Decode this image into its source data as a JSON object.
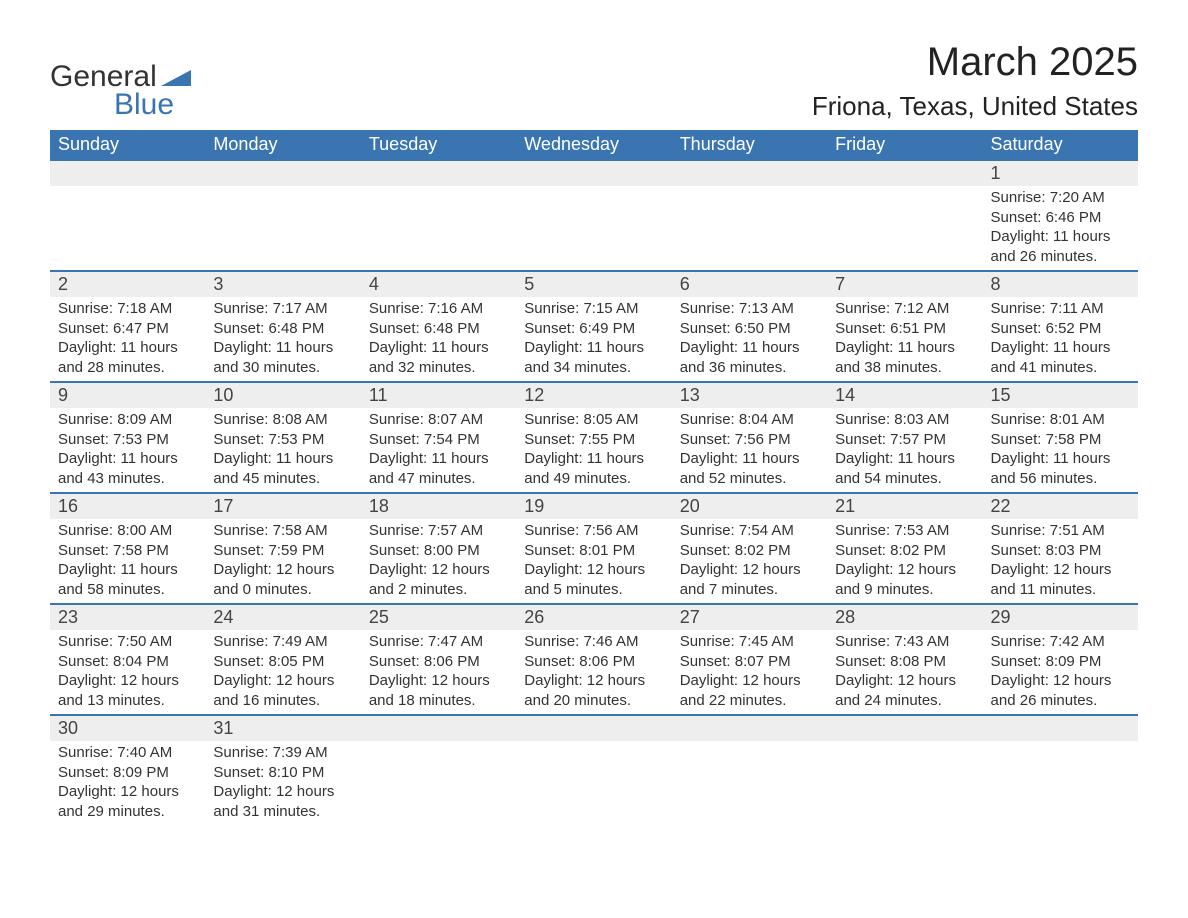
{
  "logo": {
    "text1": "General",
    "text2": "Blue",
    "accent_color": "#3a75b2"
  },
  "title": "March 2025",
  "location": "Friona, Texas, United States",
  "theme": {
    "header_bg": "#3a75b2",
    "header_fg": "#ffffff",
    "daynum_bg": "#eeeeee",
    "row_separator": "#3a75b2",
    "text_color": "#333333",
    "title_fontsize": 40,
    "location_fontsize": 26,
    "dayname_fontsize": 18,
    "daynum_fontsize": 18,
    "detail_fontsize": 15
  },
  "daynames": [
    "Sunday",
    "Monday",
    "Tuesday",
    "Wednesday",
    "Thursday",
    "Friday",
    "Saturday"
  ],
  "weeks": [
    [
      null,
      null,
      null,
      null,
      null,
      null,
      {
        "n": "1",
        "sunrise": "7:20 AM",
        "sunset": "6:46 PM",
        "dl_h": "11",
        "dl_m": "26"
      }
    ],
    [
      {
        "n": "2",
        "sunrise": "7:18 AM",
        "sunset": "6:47 PM",
        "dl_h": "11",
        "dl_m": "28"
      },
      {
        "n": "3",
        "sunrise": "7:17 AM",
        "sunset": "6:48 PM",
        "dl_h": "11",
        "dl_m": "30"
      },
      {
        "n": "4",
        "sunrise": "7:16 AM",
        "sunset": "6:48 PM",
        "dl_h": "11",
        "dl_m": "32"
      },
      {
        "n": "5",
        "sunrise": "7:15 AM",
        "sunset": "6:49 PM",
        "dl_h": "11",
        "dl_m": "34"
      },
      {
        "n": "6",
        "sunrise": "7:13 AM",
        "sunset": "6:50 PM",
        "dl_h": "11",
        "dl_m": "36"
      },
      {
        "n": "7",
        "sunrise": "7:12 AM",
        "sunset": "6:51 PM",
        "dl_h": "11",
        "dl_m": "38"
      },
      {
        "n": "8",
        "sunrise": "7:11 AM",
        "sunset": "6:52 PM",
        "dl_h": "11",
        "dl_m": "41"
      }
    ],
    [
      {
        "n": "9",
        "sunrise": "8:09 AM",
        "sunset": "7:53 PM",
        "dl_h": "11",
        "dl_m": "43"
      },
      {
        "n": "10",
        "sunrise": "8:08 AM",
        "sunset": "7:53 PM",
        "dl_h": "11",
        "dl_m": "45"
      },
      {
        "n": "11",
        "sunrise": "8:07 AM",
        "sunset": "7:54 PM",
        "dl_h": "11",
        "dl_m": "47"
      },
      {
        "n": "12",
        "sunrise": "8:05 AM",
        "sunset": "7:55 PM",
        "dl_h": "11",
        "dl_m": "49"
      },
      {
        "n": "13",
        "sunrise": "8:04 AM",
        "sunset": "7:56 PM",
        "dl_h": "11",
        "dl_m": "52"
      },
      {
        "n": "14",
        "sunrise": "8:03 AM",
        "sunset": "7:57 PM",
        "dl_h": "11",
        "dl_m": "54"
      },
      {
        "n": "15",
        "sunrise": "8:01 AM",
        "sunset": "7:58 PM",
        "dl_h": "11",
        "dl_m": "56"
      }
    ],
    [
      {
        "n": "16",
        "sunrise": "8:00 AM",
        "sunset": "7:58 PM",
        "dl_h": "11",
        "dl_m": "58"
      },
      {
        "n": "17",
        "sunrise": "7:58 AM",
        "sunset": "7:59 PM",
        "dl_h": "12",
        "dl_m": "0"
      },
      {
        "n": "18",
        "sunrise": "7:57 AM",
        "sunset": "8:00 PM",
        "dl_h": "12",
        "dl_m": "2"
      },
      {
        "n": "19",
        "sunrise": "7:56 AM",
        "sunset": "8:01 PM",
        "dl_h": "12",
        "dl_m": "5"
      },
      {
        "n": "20",
        "sunrise": "7:54 AM",
        "sunset": "8:02 PM",
        "dl_h": "12",
        "dl_m": "7"
      },
      {
        "n": "21",
        "sunrise": "7:53 AM",
        "sunset": "8:02 PM",
        "dl_h": "12",
        "dl_m": "9"
      },
      {
        "n": "22",
        "sunrise": "7:51 AM",
        "sunset": "8:03 PM",
        "dl_h": "12",
        "dl_m": "11"
      }
    ],
    [
      {
        "n": "23",
        "sunrise": "7:50 AM",
        "sunset": "8:04 PM",
        "dl_h": "12",
        "dl_m": "13"
      },
      {
        "n": "24",
        "sunrise": "7:49 AM",
        "sunset": "8:05 PM",
        "dl_h": "12",
        "dl_m": "16"
      },
      {
        "n": "25",
        "sunrise": "7:47 AM",
        "sunset": "8:06 PM",
        "dl_h": "12",
        "dl_m": "18"
      },
      {
        "n": "26",
        "sunrise": "7:46 AM",
        "sunset": "8:06 PM",
        "dl_h": "12",
        "dl_m": "20"
      },
      {
        "n": "27",
        "sunrise": "7:45 AM",
        "sunset": "8:07 PM",
        "dl_h": "12",
        "dl_m": "22"
      },
      {
        "n": "28",
        "sunrise": "7:43 AM",
        "sunset": "8:08 PM",
        "dl_h": "12",
        "dl_m": "24"
      },
      {
        "n": "29",
        "sunrise": "7:42 AM",
        "sunset": "8:09 PM",
        "dl_h": "12",
        "dl_m": "26"
      }
    ],
    [
      {
        "n": "30",
        "sunrise": "7:40 AM",
        "sunset": "8:09 PM",
        "dl_h": "12",
        "dl_m": "29"
      },
      {
        "n": "31",
        "sunrise": "7:39 AM",
        "sunset": "8:10 PM",
        "dl_h": "12",
        "dl_m": "31"
      },
      null,
      null,
      null,
      null,
      null
    ]
  ],
  "labels": {
    "sunrise": "Sunrise:",
    "sunset": "Sunset:",
    "daylight_prefix": "Daylight:",
    "hours_word": "hours",
    "and_word": "and",
    "minutes_word": "minutes."
  }
}
